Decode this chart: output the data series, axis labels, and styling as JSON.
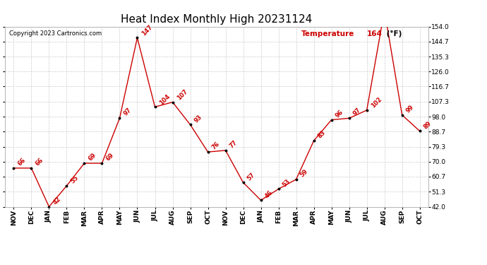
{
  "title": "Heat Index Monthly High 20231124",
  "copyright": "Copyright 2023 Cartronics.com",
  "legend_label": "Temperature⁠164⁠(°F)",
  "legend_label_display": "Temperature",
  "legend_value": "164",
  "legend_unit": "(°F)",
  "months": [
    "NOV",
    "DEC",
    "JAN",
    "FEB",
    "MAR",
    "APR",
    "MAY",
    "JUN",
    "JUL",
    "AUG",
    "SEP",
    "OCT",
    "NOV",
    "DEC",
    "JAN",
    "FEB",
    "MAR",
    "APR",
    "MAY",
    "JUN",
    "JUL",
    "AUG",
    "SEP",
    "OCT"
  ],
  "values": [
    66,
    66,
    42,
    55,
    69,
    69,
    97,
    147,
    104,
    107,
    93,
    76,
    77,
    57,
    46,
    53,
    59,
    83,
    96,
    97,
    102,
    164,
    99,
    89
  ],
  "line_color": "#cc0000",
  "marker_color": "#000000",
  "background_color": "#ffffff",
  "grid_color": "#cccccc",
  "ylim_min": 42.0,
  "ylim_max": 154.0,
  "yticks": [
    42.0,
    51.3,
    60.7,
    70.0,
    79.3,
    88.7,
    98.0,
    107.3,
    116.7,
    126.0,
    135.3,
    144.7,
    154.0
  ],
  "title_fontsize": 11,
  "annotation_fontsize": 6,
  "tick_fontsize": 6.5,
  "copyright_fontsize": 6,
  "legend_fontsize": 7.5
}
